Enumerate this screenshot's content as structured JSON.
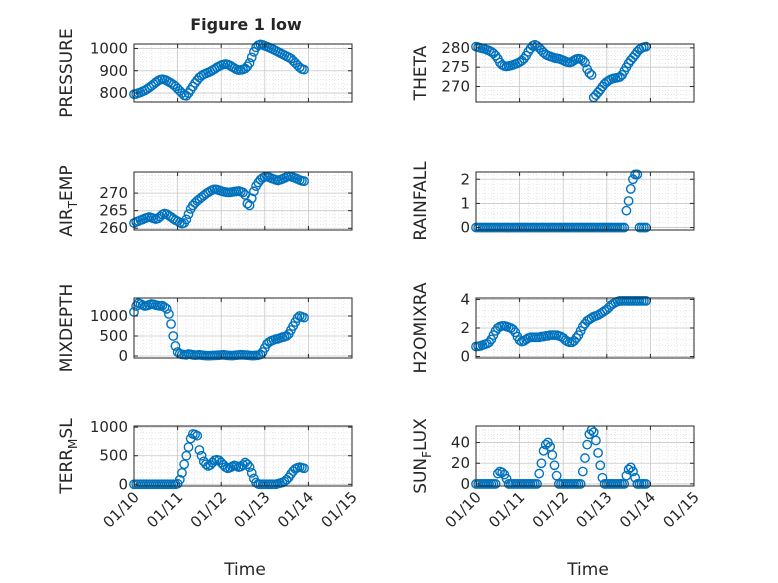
{
  "figure": {
    "title": "Figure 1 low",
    "time_label": "Time",
    "date_ticks": [
      "01/10",
      "01/11",
      "01/12",
      "01/13",
      "01/14",
      "01/15"
    ]
  },
  "colors": {
    "marker": "#0072BD",
    "axis": "#262626",
    "grid": "#d6d6d6"
  },
  "chart_data": [
    {
      "type": "scatter",
      "id": "pressure",
      "ylabel": "PRESSURE",
      "ylim": [
        760,
        1020
      ],
      "yticks": [
        800,
        900,
        1000
      ],
      "xlim": [
        "01/10",
        "01/15"
      ],
      "x": [
        0,
        0.05,
        0.1,
        0.15,
        0.2,
        0.25,
        0.3,
        0.35,
        0.4,
        0.45,
        0.5,
        0.55,
        0.6,
        0.65,
        0.7,
        0.75,
        0.8,
        0.85,
        0.9,
        0.95,
        1.0,
        1.05,
        1.1,
        1.15,
        1.2,
        1.25,
        1.3,
        1.35,
        1.4,
        1.45,
        1.5,
        1.55,
        1.6,
        1.65,
        1.7,
        1.75,
        1.8,
        1.85,
        1.9,
        1.95,
        2.0,
        2.05,
        2.1,
        2.15,
        2.2,
        2.25,
        2.3,
        2.35,
        2.4,
        2.45,
        2.5,
        2.55,
        2.6,
        2.65,
        2.7,
        2.75,
        2.8,
        2.85,
        2.9,
        2.95,
        3.0,
        3.05,
        3.1,
        3.15,
        3.2,
        3.25,
        3.3,
        3.35,
        3.4,
        3.45,
        3.5,
        3.55,
        3.6,
        3.65,
        3.7,
        3.75,
        3.8,
        3.85,
        3.9
      ],
      "values": [
        795,
        796,
        800,
        803,
        808,
        812,
        818,
        825,
        832,
        840,
        848,
        855,
        860,
        862,
        860,
        856,
        850,
        845,
        838,
        830,
        820,
        810,
        800,
        790,
        788,
        800,
        815,
        830,
        845,
        858,
        870,
        878,
        884,
        888,
        892,
        896,
        902,
        908,
        915,
        920,
        925,
        928,
        930,
        928,
        924,
        918,
        912,
        906,
        903,
        904,
        906,
        910,
        920,
        935,
        960,
        985,
        1005,
        1015,
        1018,
        1016,
        1012,
        1008,
        1004,
        1000,
        995,
        990,
        985,
        980,
        975,
        970,
        965,
        960,
        955,
        945,
        935,
        925,
        915,
        908,
        905
      ]
    },
    {
      "type": "scatter",
      "id": "theta",
      "ylabel": "THETA",
      "ylim": [
        266,
        281
      ],
      "yticks": [
        270,
        275,
        280
      ],
      "xlim": [
        "01/10",
        "01/15"
      ],
      "x": [
        0,
        0.05,
        0.1,
        0.15,
        0.2,
        0.25,
        0.3,
        0.35,
        0.4,
        0.45,
        0.5,
        0.55,
        0.6,
        0.65,
        0.7,
        0.75,
        0.8,
        0.85,
        0.9,
        0.95,
        1.0,
        1.05,
        1.1,
        1.15,
        1.2,
        1.25,
        1.3,
        1.35,
        1.4,
        1.45,
        1.5,
        1.55,
        1.6,
        1.65,
        1.7,
        1.75,
        1.8,
        1.85,
        1.9,
        1.95,
        2.0,
        2.05,
        2.1,
        2.15,
        2.2,
        2.25,
        2.3,
        2.35,
        2.4,
        2.45,
        2.5,
        2.55,
        2.6,
        2.65,
        2.7,
        2.75,
        2.8,
        2.85,
        2.9,
        2.95,
        3.0,
        3.05,
        3.1,
        3.15,
        3.2,
        3.25,
        3.3,
        3.35,
        3.4,
        3.45,
        3.5,
        3.55,
        3.6,
        3.65,
        3.7,
        3.75,
        3.8,
        3.85,
        3.9
      ],
      "values": [
        280.3,
        280.2,
        280.0,
        279.9,
        279.7,
        279.5,
        279.3,
        279.0,
        278.6,
        278.0,
        277.2,
        276.2,
        275.6,
        275.3,
        275.2,
        275.3,
        275.4,
        275.6,
        275.8,
        276.0,
        276.3,
        276.7,
        277.2,
        278.0,
        279.0,
        279.8,
        280.5,
        280.8,
        280.5,
        280.0,
        279.4,
        278.8,
        278.3,
        278.0,
        277.8,
        277.6,
        277.4,
        277.3,
        277.2,
        277.0,
        276.8,
        276.5,
        276.3,
        276.2,
        276.4,
        276.8,
        277.1,
        277.2,
        277.1,
        276.8,
        276.2,
        274.5,
        273.5,
        273.0,
        267.2,
        267.8,
        268.5,
        269.2,
        270.0,
        270.7,
        271.2,
        271.6,
        271.9,
        272.1,
        272.2,
        272.3,
        272.5,
        273.0,
        274.0,
        275.0,
        276.0,
        276.8,
        277.5,
        278.2,
        279.0,
        279.6,
        280.0,
        280.2,
        280.3
      ]
    },
    {
      "type": "scatter",
      "id": "air_temp",
      "ylabel": "AIR_TEMP",
      "ylim": [
        259.5,
        276
      ],
      "yticks": [
        260,
        265,
        270
      ],
      "xlim": [
        "01/10",
        "01/15"
      ],
      "x": [
        0,
        0.05,
        0.1,
        0.15,
        0.2,
        0.25,
        0.3,
        0.35,
        0.4,
        0.45,
        0.5,
        0.55,
        0.6,
        0.65,
        0.7,
        0.75,
        0.8,
        0.85,
        0.9,
        0.95,
        1.0,
        1.05,
        1.1,
        1.15,
        1.2,
        1.25,
        1.3,
        1.35,
        1.4,
        1.45,
        1.5,
        1.55,
        1.6,
        1.65,
        1.7,
        1.75,
        1.8,
        1.85,
        1.9,
        1.95,
        2.0,
        2.05,
        2.1,
        2.15,
        2.2,
        2.25,
        2.3,
        2.35,
        2.4,
        2.45,
        2.5,
        2.55,
        2.6,
        2.65,
        2.7,
        2.75,
        2.8,
        2.85,
        2.9,
        2.95,
        3.0,
        3.05,
        3.1,
        3.15,
        3.2,
        3.25,
        3.3,
        3.35,
        3.4,
        3.45,
        3.5,
        3.55,
        3.6,
        3.65,
        3.7,
        3.75,
        3.8,
        3.85,
        3.9
      ],
      "values": [
        261.5,
        261.8,
        262.0,
        262.3,
        262.5,
        262.8,
        263.0,
        263.2,
        263.0,
        262.8,
        262.6,
        262.8,
        263.3,
        263.9,
        264.2,
        264.0,
        263.6,
        263.2,
        262.7,
        262.3,
        262.0,
        261.6,
        261.3,
        261.5,
        262.5,
        264.0,
        265.5,
        266.5,
        267.2,
        267.8,
        268.3,
        268.8,
        269.3,
        269.8,
        270.2,
        270.6,
        270.9,
        271.1,
        271.0,
        270.8,
        270.6,
        270.4,
        270.3,
        270.2,
        270.2,
        270.3,
        270.4,
        270.5,
        270.6,
        270.4,
        270.2,
        269.5,
        267.0,
        266.5,
        268.5,
        270.5,
        272.0,
        273.0,
        273.8,
        274.3,
        274.6,
        274.7,
        274.5,
        274.2,
        274.0,
        273.8,
        273.6,
        273.8,
        274.0,
        274.3,
        274.6,
        274.8,
        274.7,
        274.5,
        274.3,
        274.0,
        273.7,
        273.5,
        273.4
      ]
    },
    {
      "type": "scatter",
      "id": "rainfall",
      "ylabel": "RAINFALL",
      "ylim": [
        -0.1,
        2.3
      ],
      "yticks": [
        0,
        1,
        2
      ],
      "xlim": [
        "01/10",
        "01/15"
      ],
      "x": [
        0,
        0.05,
        0.1,
        0.15,
        0.2,
        0.25,
        0.3,
        0.35,
        0.4,
        0.45,
        0.5,
        0.55,
        0.6,
        0.65,
        0.7,
        0.75,
        0.8,
        0.85,
        0.9,
        0.95,
        1.0,
        1.05,
        1.1,
        1.15,
        1.2,
        1.25,
        1.3,
        1.35,
        1.4,
        1.45,
        1.5,
        1.55,
        1.6,
        1.65,
        1.7,
        1.75,
        1.8,
        1.85,
        1.9,
        1.95,
        2.0,
        2.05,
        2.1,
        2.15,
        2.2,
        2.25,
        2.3,
        2.35,
        2.4,
        2.45,
        2.5,
        2.55,
        2.6,
        2.65,
        2.7,
        2.75,
        2.8,
        2.85,
        2.9,
        2.95,
        3.0,
        3.05,
        3.1,
        3.15,
        3.2,
        3.25,
        3.3,
        3.35,
        3.4,
        3.45,
        3.5,
        3.55,
        3.6,
        3.65,
        3.7,
        3.75,
        3.8,
        3.85,
        3.9
      ],
      "values": [
        0,
        0,
        0,
        0,
        0,
        0,
        0,
        0,
        0,
        0,
        0,
        0,
        0,
        0,
        0,
        0,
        0,
        0,
        0,
        0,
        0,
        0,
        0,
        0,
        0,
        0,
        0,
        0,
        0,
        0,
        0,
        0,
        0,
        0,
        0,
        0,
        0,
        0,
        0,
        0,
        0,
        0,
        0,
        0,
        0,
        0,
        0,
        0,
        0,
        0,
        0,
        0,
        0,
        0,
        0,
        0,
        0,
        0,
        0,
        0,
        0,
        0,
        0,
        0,
        0,
        0,
        0,
        0,
        0,
        0.7,
        1.1,
        1.6,
        2.0,
        2.2,
        2.2,
        0,
        0,
        0,
        0
      ]
    },
    {
      "type": "scatter",
      "id": "mixdepth",
      "ylabel": "MIXDEPTH",
      "ylim": [
        -50,
        1450
      ],
      "yticks": [
        0,
        500,
        1000
      ],
      "xlim": [
        "01/10",
        "01/15"
      ],
      "x": [
        0,
        0.05,
        0.1,
        0.15,
        0.2,
        0.25,
        0.3,
        0.35,
        0.4,
        0.45,
        0.5,
        0.55,
        0.6,
        0.65,
        0.7,
        0.75,
        0.8,
        0.85,
        0.9,
        0.95,
        1.0,
        1.05,
        1.1,
        1.15,
        1.2,
        1.25,
        1.3,
        1.35,
        1.4,
        1.45,
        1.5,
        1.55,
        1.6,
        1.65,
        1.7,
        1.75,
        1.8,
        1.85,
        1.9,
        1.95,
        2.0,
        2.05,
        2.1,
        2.15,
        2.2,
        2.25,
        2.3,
        2.35,
        2.4,
        2.45,
        2.5,
        2.55,
        2.6,
        2.65,
        2.7,
        2.75,
        2.8,
        2.85,
        2.9,
        2.95,
        3.0,
        3.05,
        3.1,
        3.15,
        3.2,
        3.25,
        3.3,
        3.35,
        3.4,
        3.45,
        3.5,
        3.55,
        3.6,
        3.65,
        3.7,
        3.75,
        3.8,
        3.85,
        3.9
      ],
      "values": [
        1100,
        1250,
        1320,
        1300,
        1270,
        1250,
        1260,
        1280,
        1300,
        1290,
        1270,
        1260,
        1250,
        1260,
        1220,
        1180,
        1050,
        800,
        500,
        250,
        100,
        60,
        40,
        35,
        30,
        50,
        40,
        30,
        20,
        25,
        30,
        20,
        15,
        10,
        8,
        10,
        12,
        15,
        18,
        20,
        25,
        30,
        20,
        15,
        12,
        10,
        15,
        20,
        25,
        30,
        28,
        25,
        20,
        15,
        10,
        12,
        15,
        20,
        40,
        100,
        200,
        300,
        350,
        380,
        400,
        420,
        430,
        450,
        470,
        480,
        500,
        550,
        650,
        750,
        850,
        950,
        1000,
        980,
        960
      ]
    },
    {
      "type": "scatter",
      "id": "h2omixra",
      "ylabel": "H2OMIXRA",
      "ylim": [
        -0.1,
        4.1
      ],
      "yticks": [
        0,
        2,
        4
      ],
      "xlim": [
        "01/10",
        "01/15"
      ],
      "x": [
        0,
        0.05,
        0.1,
        0.15,
        0.2,
        0.25,
        0.3,
        0.35,
        0.4,
        0.45,
        0.5,
        0.55,
        0.6,
        0.65,
        0.7,
        0.75,
        0.8,
        0.85,
        0.9,
        0.95,
        1.0,
        1.05,
        1.1,
        1.15,
        1.2,
        1.25,
        1.3,
        1.35,
        1.4,
        1.45,
        1.5,
        1.55,
        1.6,
        1.65,
        1.7,
        1.75,
        1.8,
        1.85,
        1.9,
        1.95,
        2.0,
        2.05,
        2.1,
        2.15,
        2.2,
        2.25,
        2.3,
        2.35,
        2.4,
        2.45,
        2.5,
        2.55,
        2.6,
        2.65,
        2.7,
        2.75,
        2.8,
        2.85,
        2.9,
        2.95,
        3.0,
        3.05,
        3.1,
        3.15,
        3.2,
        3.25,
        3.3,
        3.35,
        3.4,
        3.45,
        3.5,
        3.55,
        3.6,
        3.65,
        3.7,
        3.75,
        3.8,
        3.85,
        3.9
      ],
      "values": [
        0.7,
        0.72,
        0.75,
        0.8,
        0.85,
        0.9,
        1.0,
        1.2,
        1.5,
        1.8,
        2.0,
        2.1,
        2.15,
        2.15,
        2.1,
        2.05,
        2.0,
        1.9,
        1.7,
        1.4,
        1.15,
        1.05,
        1.1,
        1.2,
        1.3,
        1.35,
        1.35,
        1.35,
        1.35,
        1.35,
        1.4,
        1.4,
        1.45,
        1.45,
        1.5,
        1.5,
        1.5,
        1.5,
        1.45,
        1.4,
        1.3,
        1.15,
        1.05,
        1.0,
        1.0,
        1.1,
        1.3,
        1.5,
        1.8,
        2.1,
        2.3,
        2.5,
        2.6,
        2.7,
        2.8,
        2.85,
        2.9,
        3.0,
        3.1,
        3.2,
        3.3,
        3.45,
        3.6,
        3.7,
        3.8,
        3.85,
        3.9,
        3.9,
        3.9,
        3.9,
        3.9,
        3.9,
        3.9,
        3.9,
        3.9,
        3.9,
        3.9,
        3.9,
        3.9
      ]
    },
    {
      "type": "scatter",
      "id": "terr_msl",
      "ylabel": "TERR_MSL",
      "ylim": [
        -30,
        1020
      ],
      "yticks": [
        0,
        500,
        1000
      ],
      "xlim": [
        "01/10",
        "01/15"
      ],
      "x": [
        0,
        0.05,
        0.1,
        0.15,
        0.2,
        0.25,
        0.3,
        0.35,
        0.4,
        0.45,
        0.5,
        0.55,
        0.6,
        0.65,
        0.7,
        0.75,
        0.8,
        0.85,
        0.9,
        0.95,
        1.0,
        1.05,
        1.1,
        1.15,
        1.2,
        1.25,
        1.3,
        1.35,
        1.4,
        1.45,
        1.5,
        1.55,
        1.6,
        1.65,
        1.7,
        1.75,
        1.8,
        1.85,
        1.9,
        1.95,
        2.0,
        2.05,
        2.1,
        2.15,
        2.2,
        2.25,
        2.3,
        2.35,
        2.4,
        2.45,
        2.5,
        2.55,
        2.6,
        2.65,
        2.7,
        2.75,
        2.8,
        2.85,
        2.9,
        2.95,
        3.0,
        3.05,
        3.1,
        3.15,
        3.2,
        3.25,
        3.3,
        3.35,
        3.4,
        3.45,
        3.5,
        3.55,
        3.6,
        3.65,
        3.7,
        3.75,
        3.8,
        3.85,
        3.9
      ],
      "values": [
        0,
        0,
        0,
        0,
        0,
        0,
        0,
        0,
        0,
        0,
        0,
        0,
        0,
        0,
        0,
        0,
        0,
        0,
        0,
        0,
        10,
        80,
        200,
        350,
        500,
        650,
        800,
        880,
        870,
        850,
        600,
        500,
        400,
        350,
        320,
        340,
        380,
        420,
        430,
        420,
        380,
        340,
        300,
        280,
        290,
        310,
        330,
        320,
        300,
        310,
        340,
        380,
        350,
        300,
        200,
        100,
        30,
        5,
        0,
        0,
        0,
        0,
        0,
        0,
        0,
        0,
        10,
        20,
        30,
        50,
        80,
        120,
        180,
        230,
        270,
        290,
        300,
        290,
        280
      ]
    },
    {
      "type": "scatter",
      "id": "sun_flux",
      "ylabel": "SUN_FLUX",
      "ylim": [
        -2,
        56
      ],
      "yticks": [
        0,
        20,
        40
      ],
      "xlim": [
        "01/10",
        "01/15"
      ],
      "x": [
        0,
        0.05,
        0.1,
        0.15,
        0.2,
        0.25,
        0.3,
        0.35,
        0.4,
        0.45,
        0.5,
        0.55,
        0.6,
        0.65,
        0.7,
        0.75,
        0.8,
        0.85,
        0.9,
        0.95,
        1.0,
        1.05,
        1.1,
        1.15,
        1.2,
        1.25,
        1.3,
        1.35,
        1.4,
        1.45,
        1.5,
        1.55,
        1.6,
        1.65,
        1.7,
        1.75,
        1.8,
        1.85,
        1.9,
        1.95,
        2.0,
        2.05,
        2.1,
        2.15,
        2.2,
        2.25,
        2.3,
        2.35,
        2.4,
        2.45,
        2.5,
        2.55,
        2.6,
        2.65,
        2.7,
        2.75,
        2.8,
        2.85,
        2.9,
        2.95,
        3.0,
        3.05,
        3.1,
        3.15,
        3.2,
        3.25,
        3.3,
        3.35,
        3.4,
        3.45,
        3.5,
        3.55,
        3.6,
        3.65,
        3.7,
        3.75,
        3.8,
        3.85,
        3.9
      ],
      "values": [
        0,
        0,
        0,
        0,
        0,
        0,
        0,
        0,
        0,
        0,
        10,
        12,
        11,
        9,
        5,
        0,
        0,
        0,
        0,
        0,
        0,
        0,
        0,
        0,
        0,
        0,
        0,
        0,
        0,
        10,
        20,
        32,
        38,
        40,
        36,
        28,
        18,
        8,
        0,
        0,
        0,
        0,
        0,
        0,
        0,
        0,
        0,
        0,
        0,
        12,
        25,
        38,
        48,
        52,
        50,
        42,
        30,
        18,
        6,
        0,
        0,
        0,
        0,
        0,
        0,
        0,
        0,
        0,
        0,
        8,
        14,
        16,
        12,
        6,
        0,
        0,
        0,
        0,
        0
      ]
    }
  ]
}
